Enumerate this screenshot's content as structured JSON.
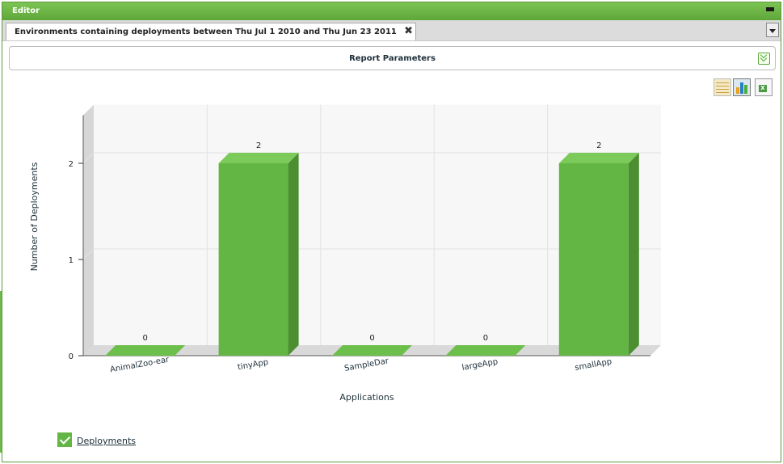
{
  "window": {
    "title": "Editor"
  },
  "tab": {
    "label": "Environments containing deployments between Thu Jul 1 2010 and Thu Jun 23 2011",
    "close_glyph": "✖"
  },
  "report_parameters": {
    "label": "Report Parameters"
  },
  "toolbar": {
    "icons": [
      "table-view-icon",
      "chart-view-icon",
      "excel-export-icon"
    ]
  },
  "legend": {
    "label": "Deployments",
    "color": "#63b544"
  },
  "chart_data": {
    "type": "bar",
    "categories": [
      "AnimalZoo-ear",
      "tinyApp",
      "SampleDar",
      "largeApp",
      "smallApp"
    ],
    "series": [
      {
        "name": "Deployments",
        "values": [
          0,
          2,
          0,
          0,
          2
        ]
      }
    ],
    "xlabel": "Applications",
    "ylabel": "Number of Deployments",
    "ylim": [
      0,
      2.5
    ],
    "yticks": [
      0,
      1,
      2
    ],
    "grid": true,
    "legend_position": "bottom-left",
    "bar_color": "#63b544"
  }
}
